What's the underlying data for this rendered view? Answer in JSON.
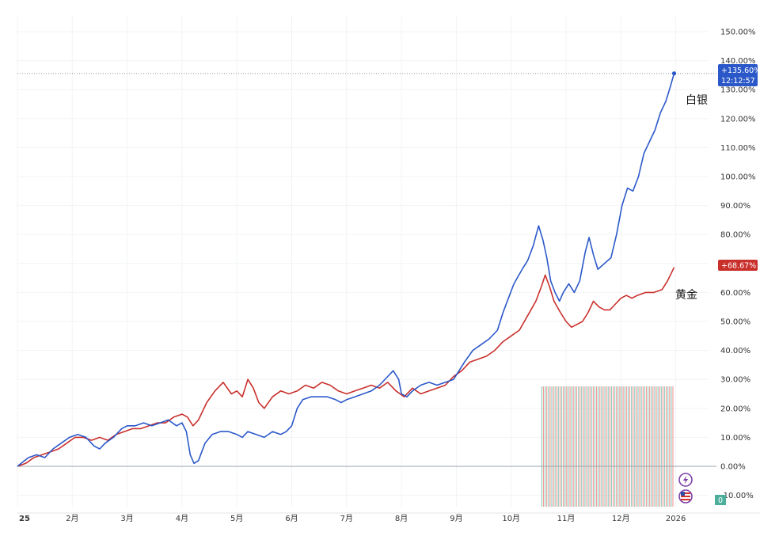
{
  "chart_data": {
    "type": "line",
    "title": "",
    "xlabel": "",
    "ylabel": "",
    "ylim": [
      -14,
      150
    ],
    "y_ticks": [
      {
        "value": 150,
        "label": "150.00%"
      },
      {
        "value": 140,
        "label": "140.00%"
      },
      {
        "value": 130,
        "label": "130.00%"
      },
      {
        "value": 120,
        "label": "120.00%"
      },
      {
        "value": 110,
        "label": "110.00%"
      },
      {
        "value": 100,
        "label": "100.00%"
      },
      {
        "value": 90,
        "label": "90.00%"
      },
      {
        "value": 80,
        "label": "80.00%"
      },
      {
        "value": 70,
        "label": "70.00%"
      },
      {
        "value": 60,
        "label": "60.00%"
      },
      {
        "value": 50,
        "label": "50.00%"
      },
      {
        "value": 40,
        "label": "40.00%"
      },
      {
        "value": 30,
        "label": "30.00%"
      },
      {
        "value": 20,
        "label": "20.00%"
      },
      {
        "value": 10,
        "label": "10.00%"
      },
      {
        "value": 0,
        "label": "0.00%"
      },
      {
        "value": -10,
        "label": "-10.00%"
      }
    ],
    "x_ticks": [
      {
        "month": 0,
        "label": "25"
      },
      {
        "month": 1,
        "label": "2月"
      },
      {
        "month": 2,
        "label": "3月"
      },
      {
        "month": 3,
        "label": "4月"
      },
      {
        "month": 4,
        "label": "5月"
      },
      {
        "month": 5,
        "label": "6月"
      },
      {
        "month": 6,
        "label": "7月"
      },
      {
        "month": 7,
        "label": "8月"
      },
      {
        "month": 8,
        "label": "9月"
      },
      {
        "month": 9,
        "label": "10月"
      },
      {
        "month": 10,
        "label": "11月"
      },
      {
        "month": 11,
        "label": "12月"
      },
      {
        "month": 12,
        "label": "2026"
      }
    ],
    "series": [
      {
        "name": "白银",
        "color": "#2b58c9",
        "last_value_label": "+135.60%",
        "last_time_label": "12:12:57",
        "points": [
          [
            0,
            0
          ],
          [
            0.1,
            1.5
          ],
          [
            0.2,
            3
          ],
          [
            0.35,
            4
          ],
          [
            0.5,
            3
          ],
          [
            0.65,
            6
          ],
          [
            0.8,
            8
          ],
          [
            0.95,
            10
          ],
          [
            1.1,
            11
          ],
          [
            1.25,
            10
          ],
          [
            1.4,
            7
          ],
          [
            1.5,
            6
          ],
          [
            1.6,
            8
          ],
          [
            1.75,
            10
          ],
          [
            1.9,
            13
          ],
          [
            2.0,
            14
          ],
          [
            2.15,
            14
          ],
          [
            2.3,
            15
          ],
          [
            2.45,
            14
          ],
          [
            2.6,
            15
          ],
          [
            2.75,
            16
          ],
          [
            2.9,
            14
          ],
          [
            3.0,
            15
          ],
          [
            3.08,
            12
          ],
          [
            3.15,
            4
          ],
          [
            3.22,
            1
          ],
          [
            3.3,
            2
          ],
          [
            3.42,
            8
          ],
          [
            3.55,
            11
          ],
          [
            3.7,
            12
          ],
          [
            3.85,
            12
          ],
          [
            4.0,
            11
          ],
          [
            4.1,
            10
          ],
          [
            4.2,
            12
          ],
          [
            4.35,
            11
          ],
          [
            4.5,
            10
          ],
          [
            4.65,
            12
          ],
          [
            4.8,
            11
          ],
          [
            4.9,
            12
          ],
          [
            5.0,
            14
          ],
          [
            5.1,
            20
          ],
          [
            5.2,
            23
          ],
          [
            5.35,
            24
          ],
          [
            5.5,
            24
          ],
          [
            5.65,
            24
          ],
          [
            5.8,
            23
          ],
          [
            5.9,
            22
          ],
          [
            6.0,
            23
          ],
          [
            6.15,
            24
          ],
          [
            6.3,
            25
          ],
          [
            6.45,
            26
          ],
          [
            6.6,
            28
          ],
          [
            6.75,
            31
          ],
          [
            6.85,
            33
          ],
          [
            6.95,
            30
          ],
          [
            7.0,
            25
          ],
          [
            7.1,
            24
          ],
          [
            7.2,
            26
          ],
          [
            7.35,
            28
          ],
          [
            7.5,
            29
          ],
          [
            7.65,
            28
          ],
          [
            7.8,
            29
          ],
          [
            7.95,
            30
          ],
          [
            8.05,
            33
          ],
          [
            8.15,
            36
          ],
          [
            8.3,
            40
          ],
          [
            8.45,
            42
          ],
          [
            8.6,
            44
          ],
          [
            8.75,
            47
          ],
          [
            8.85,
            53
          ],
          [
            8.95,
            58
          ],
          [
            9.05,
            63
          ],
          [
            9.2,
            68
          ],
          [
            9.3,
            71
          ],
          [
            9.4,
            76
          ],
          [
            9.5,
            83
          ],
          [
            9.58,
            78
          ],
          [
            9.65,
            72
          ],
          [
            9.72,
            64
          ],
          [
            9.8,
            60
          ],
          [
            9.88,
            57
          ],
          [
            9.95,
            60
          ],
          [
            10.05,
            63
          ],
          [
            10.15,
            60
          ],
          [
            10.25,
            64
          ],
          [
            10.35,
            74
          ],
          [
            10.42,
            79
          ],
          [
            10.5,
            73
          ],
          [
            10.58,
            68
          ],
          [
            10.7,
            70
          ],
          [
            10.82,
            72
          ],
          [
            10.92,
            80
          ],
          [
            11.02,
            90
          ],
          [
            11.12,
            96
          ],
          [
            11.22,
            95
          ],
          [
            11.32,
            100
          ],
          [
            11.42,
            108
          ],
          [
            11.52,
            112
          ],
          [
            11.62,
            116
          ],
          [
            11.72,
            122
          ],
          [
            11.82,
            126
          ],
          [
            11.9,
            131
          ],
          [
            11.97,
            135.6
          ]
        ]
      },
      {
        "name": "黄金",
        "color": "#c9302c",
        "last_value_label": "+68.67%",
        "points": [
          [
            0,
            0
          ],
          [
            0.15,
            1
          ],
          [
            0.3,
            3
          ],
          [
            0.45,
            4
          ],
          [
            0.6,
            5
          ],
          [
            0.75,
            6
          ],
          [
            0.9,
            8
          ],
          [
            1.05,
            10
          ],
          [
            1.2,
            10
          ],
          [
            1.35,
            9
          ],
          [
            1.5,
            10
          ],
          [
            1.65,
            9
          ],
          [
            1.8,
            11
          ],
          [
            1.95,
            12
          ],
          [
            2.1,
            13
          ],
          [
            2.25,
            13
          ],
          [
            2.4,
            14
          ],
          [
            2.55,
            15
          ],
          [
            2.7,
            15
          ],
          [
            2.85,
            17
          ],
          [
            3.0,
            18
          ],
          [
            3.1,
            17
          ],
          [
            3.2,
            14
          ],
          [
            3.3,
            16
          ],
          [
            3.45,
            22
          ],
          [
            3.6,
            26
          ],
          [
            3.75,
            29
          ],
          [
            3.9,
            25
          ],
          [
            4.0,
            26
          ],
          [
            4.1,
            24
          ],
          [
            4.2,
            30
          ],
          [
            4.3,
            27
          ],
          [
            4.4,
            22
          ],
          [
            4.5,
            20
          ],
          [
            4.65,
            24
          ],
          [
            4.8,
            26
          ],
          [
            4.95,
            25
          ],
          [
            5.1,
            26
          ],
          [
            5.25,
            28
          ],
          [
            5.4,
            27
          ],
          [
            5.55,
            29
          ],
          [
            5.7,
            28
          ],
          [
            5.85,
            26
          ],
          [
            6.0,
            25
          ],
          [
            6.15,
            26
          ],
          [
            6.3,
            27
          ],
          [
            6.45,
            28
          ],
          [
            6.6,
            27
          ],
          [
            6.75,
            29
          ],
          [
            6.9,
            26
          ],
          [
            7.05,
            24
          ],
          [
            7.2,
            27
          ],
          [
            7.35,
            25
          ],
          [
            7.5,
            26
          ],
          [
            7.65,
            27
          ],
          [
            7.8,
            28
          ],
          [
            7.95,
            31
          ],
          [
            8.1,
            33
          ],
          [
            8.25,
            36
          ],
          [
            8.4,
            37
          ],
          [
            8.55,
            38
          ],
          [
            8.7,
            40
          ],
          [
            8.85,
            43
          ],
          [
            9.0,
            45
          ],
          [
            9.15,
            47
          ],
          [
            9.3,
            52
          ],
          [
            9.45,
            57
          ],
          [
            9.55,
            62
          ],
          [
            9.62,
            66
          ],
          [
            9.7,
            62
          ],
          [
            9.78,
            57
          ],
          [
            9.9,
            53
          ],
          [
            10.0,
            50
          ],
          [
            10.1,
            48
          ],
          [
            10.2,
            49
          ],
          [
            10.3,
            50
          ],
          [
            10.4,
            53
          ],
          [
            10.5,
            57
          ],
          [
            10.6,
            55
          ],
          [
            10.7,
            54
          ],
          [
            10.8,
            54
          ],
          [
            10.9,
            56
          ],
          [
            11.0,
            58
          ],
          [
            11.1,
            59
          ],
          [
            11.2,
            58
          ],
          [
            11.3,
            59
          ],
          [
            11.45,
            60
          ],
          [
            11.6,
            60
          ],
          [
            11.75,
            61
          ],
          [
            11.85,
            64
          ],
          [
            11.97,
            68.67
          ]
        ]
      }
    ],
    "volume_bars": {
      "start_month": 9.55,
      "end_month": 11.97,
      "count": 80,
      "colors": [
        "#7fc7b4",
        "#ef8a86"
      ]
    },
    "annotations": [
      {
        "text": "白银",
        "series": "白银"
      },
      {
        "text": "黄金",
        "series": "黄金"
      }
    ]
  },
  "badges": {
    "bottom_right": "0",
    "icons": [
      "lightning-icon",
      "us-flag-icon"
    ]
  }
}
